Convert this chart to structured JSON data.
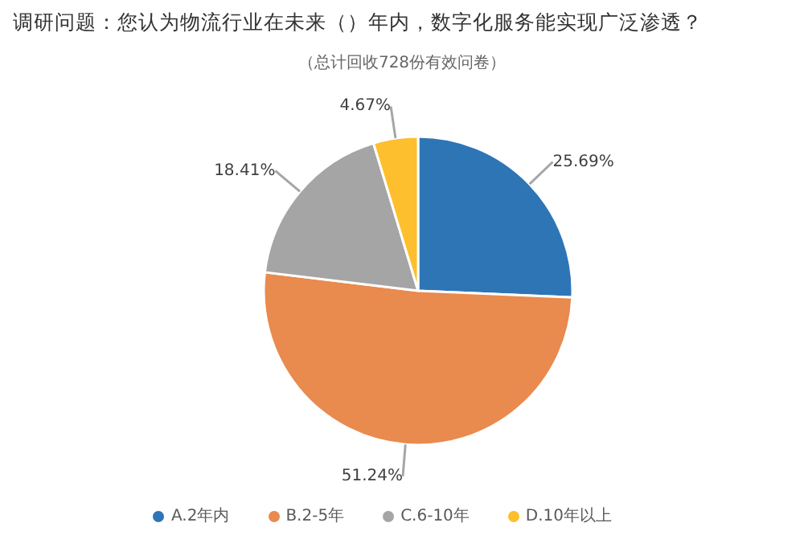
{
  "chart_data": {
    "type": "pie",
    "title": "调研问题：您认为物流行业在未来（）年内，数字化服务能实现广泛渗透？",
    "subtitle": "（总计回收728份有效问卷）",
    "categories": [
      "A.2年内",
      "B.2-5年",
      "C.6-10年",
      "D.10年以上"
    ],
    "values": [
      25.69,
      51.24,
      18.41,
      4.67
    ],
    "value_labels": [
      "25.69%",
      "51.24%",
      "18.41%",
      "4.67%"
    ],
    "colors": [
      "#2e75b6",
      "#e98a4e",
      "#a5a5a5",
      "#fdbf2d"
    ],
    "legend": "bottom"
  }
}
